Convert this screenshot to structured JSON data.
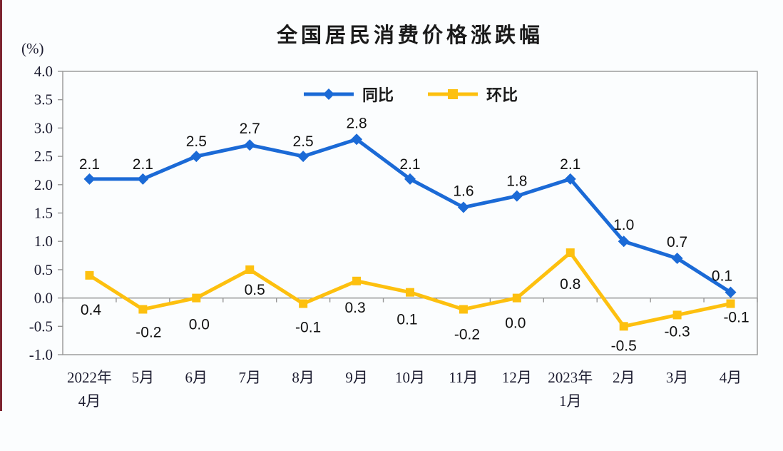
{
  "page": {
    "background_color": "#fbfdfe",
    "left_edge_strip_color": "#7d2430"
  },
  "chart_data": {
    "type": "line",
    "title": "全国居民消费价格涨跌幅",
    "y_unit": "(%)",
    "categories": [
      "2022年\n4月",
      "5月",
      "6月",
      "7月",
      "8月",
      "9月",
      "10月",
      "11月",
      "12月",
      "2023年\n1月",
      "2月",
      "3月",
      "4月"
    ],
    "series": [
      {
        "name": "同比",
        "color": "#1b6ad6",
        "marker": "diamond",
        "values": [
          2.1,
          2.1,
          2.5,
          2.7,
          2.5,
          2.8,
          2.1,
          1.6,
          1.8,
          2.1,
          1.0,
          0.7,
          0.1
        ]
      },
      {
        "name": "环比",
        "color": "#fdc00f",
        "marker": "square",
        "values": [
          0.4,
          -0.2,
          0.0,
          0.5,
          -0.1,
          0.3,
          0.1,
          -0.2,
          0.0,
          0.8,
          -0.5,
          -0.3,
          -0.1
        ]
      }
    ],
    "ylim": [
      -1.0,
      4.0
    ],
    "y_tick_step": 0.5,
    "y_ticks": [
      "4.0",
      "3.5",
      "3.0",
      "2.5",
      "2.0",
      "1.5",
      "1.0",
      "0.5",
      "0.0",
      "-0.5",
      "-1.0"
    ],
    "legend_position": "top-center-inside",
    "grid": "zero-line-only",
    "axis_color": "#969696",
    "tick_text_color": "#1c1c30",
    "data_label_color": "#111111"
  }
}
